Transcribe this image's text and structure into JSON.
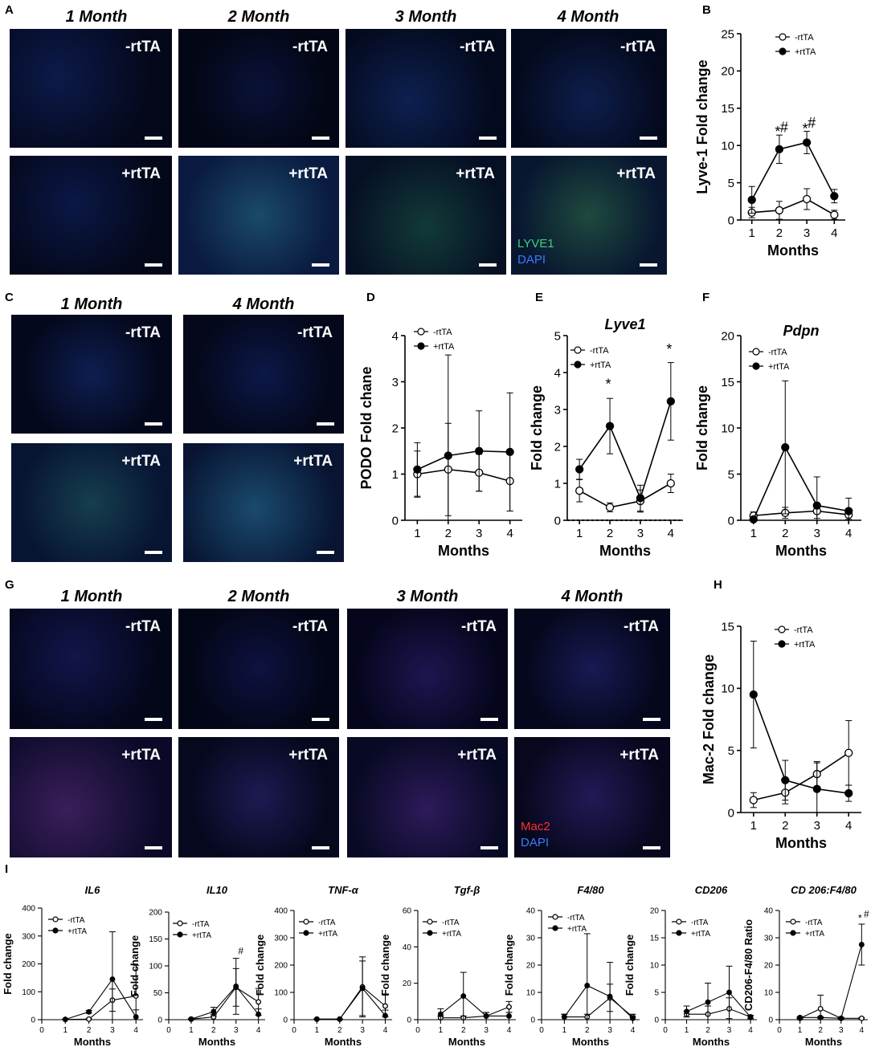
{
  "panel_letters": {
    "A": "A",
    "B": "B",
    "C": "C",
    "D": "D",
    "E": "E",
    "F": "F",
    "G": "G",
    "H": "H",
    "I": "I"
  },
  "panelA": {
    "columns": [
      "1 Month",
      "2 Month",
      "3 Month",
      "4 Month"
    ],
    "row_labels": [
      "-rtTA",
      "+rtTA"
    ],
    "stain_labels": [
      "LYVE1",
      "DAPI"
    ],
    "stain_colors": [
      "#2ecc71",
      "#2f6bff"
    ]
  },
  "panelC": {
    "columns": [
      "1 Month",
      "4 Month"
    ],
    "row_labels": [
      "-rtTA",
      "+rtTA"
    ]
  },
  "panelG": {
    "columns": [
      "1 Month",
      "2 Month",
      "3 Month",
      "4 Month"
    ],
    "row_labels": [
      "-rtTA",
      "+rtTA"
    ],
    "stain_labels": [
      "Mac2",
      "DAPI"
    ],
    "stain_colors": [
      "#ff2a2a",
      "#2f6bff"
    ]
  },
  "chart_data": [
    {
      "id": "B",
      "type": "line",
      "title": "",
      "xlabel": "Months",
      "ylabel": "Lyve-1 Fold change",
      "x": [
        1,
        2,
        3,
        4
      ],
      "ylim": [
        0,
        25
      ],
      "yticks": [
        0,
        5,
        10,
        15,
        20,
        25
      ],
      "series": [
        {
          "name": "-rtTA",
          "values": [
            1.0,
            1.3,
            2.8,
            0.7
          ],
          "err": [
            0.7,
            1.2,
            1.4,
            0.6
          ],
          "filled": false
        },
        {
          "name": "+rtTA",
          "values": [
            2.7,
            9.5,
            10.4,
            3.2
          ],
          "err": [
            1.8,
            1.9,
            1.5,
            0.9
          ],
          "filled": true
        }
      ],
      "annotations": [
        {
          "x": 2,
          "y": 11.2,
          "text": "*"
        },
        {
          "x": 2,
          "y": 11.8,
          "text": "#"
        },
        {
          "x": 3,
          "y": 11.6,
          "text": "*"
        },
        {
          "x": 3,
          "y": 12.4,
          "text": "#"
        }
      ]
    },
    {
      "id": "D",
      "type": "line",
      "title": "",
      "xlabel": "Months",
      "ylabel": "PODO Fold chane",
      "x": [
        1,
        2,
        3,
        4
      ],
      "ylim": [
        0,
        4
      ],
      "yticks": [
        0,
        1,
        2,
        3,
        4
      ],
      "series": [
        {
          "name": "-rtTA",
          "values": [
            1.0,
            1.1,
            1.03,
            0.85
          ],
          "err": [
            0.5,
            1.0,
            0.4,
            0.65
          ],
          "filled": false
        },
        {
          "name": "+rtTA",
          "values": [
            1.1,
            1.4,
            1.5,
            1.48
          ],
          "err": [
            0.58,
            2.18,
            0.87,
            1.28
          ],
          "filled": true
        }
      ],
      "annotations": []
    },
    {
      "id": "E",
      "type": "line",
      "title": "Lyve1",
      "xlabel": "Months",
      "ylabel": "Fold change",
      "x": [
        1,
        2,
        3,
        4
      ],
      "ylim": [
        0,
        5
      ],
      "yticks": [
        0,
        1,
        2,
        3,
        4,
        5
      ],
      "series": [
        {
          "name": "-rtTA",
          "values": [
            0.8,
            0.35,
            0.52,
            1.0
          ],
          "err": [
            0.3,
            0.12,
            0.3,
            0.25
          ],
          "filled": false
        },
        {
          "name": "+rtTA",
          "values": [
            1.38,
            2.55,
            0.6,
            3.22
          ],
          "err": [
            0.27,
            0.75,
            0.35,
            1.05
          ],
          "filled": true
        }
      ],
      "annotations": [
        {
          "x": 2,
          "y": 3.55,
          "text": "*"
        },
        {
          "x": 4,
          "y": 4.5,
          "text": "*"
        }
      ]
    },
    {
      "id": "F",
      "type": "line",
      "title": "Pdpn",
      "xlabel": "Months",
      "ylabel": "Fold change",
      "x": [
        1,
        2,
        3,
        4
      ],
      "ylim": [
        0,
        20
      ],
      "yticks": [
        0,
        5,
        10,
        15,
        20
      ],
      "series": [
        {
          "name": "-rtTA",
          "values": [
            0.5,
            0.8,
            1.0,
            0.6
          ],
          "err": [
            0.4,
            0.6,
            0.8,
            0.5
          ],
          "filled": false
        },
        {
          "name": "+rtTA",
          "values": [
            0.1,
            7.9,
            1.6,
            1.0
          ],
          "err": [
            0.2,
            7.2,
            3.1,
            1.4
          ],
          "filled": true
        }
      ],
      "annotations": []
    },
    {
      "id": "H",
      "type": "line",
      "title": "",
      "xlabel": "Months",
      "ylabel": "Mac-2 Fold change",
      "x": [
        1,
        2,
        3,
        4
      ],
      "ylim": [
        0,
        15
      ],
      "yticks": [
        0,
        5,
        10,
        15
      ],
      "series": [
        {
          "name": "-rtTA",
          "values": [
            1.0,
            1.6,
            3.1,
            4.8
          ],
          "err": [
            0.6,
            0.9,
            1.0,
            2.6
          ],
          "filled": false
        },
        {
          "name": "+rtTA",
          "values": [
            9.5,
            2.6,
            1.9,
            1.55
          ],
          "err": [
            4.3,
            1.6,
            2.1,
            0.65
          ],
          "filled": true
        }
      ],
      "annotations": []
    },
    {
      "id": "I1",
      "type": "line",
      "title": "IL6",
      "xlabel": "Months",
      "ylabel": "Fold change",
      "x": [
        1,
        2,
        3,
        4
      ],
      "xticks": [
        0,
        1,
        2,
        3,
        4
      ],
      "ylim": [
        0,
        400
      ],
      "yticks": [
        0,
        100,
        200,
        300,
        400
      ],
      "series": [
        {
          "name": "-rtTA",
          "values": [
            1,
            2,
            70,
            85
          ],
          "err": [
            1,
            2,
            40,
            110
          ],
          "filled": false
        },
        {
          "name": "+rtTA",
          "values": [
            1,
            28,
            145,
            10
          ],
          "err": [
            1,
            5,
            170,
            25
          ],
          "filled": true
        }
      ],
      "annotations": []
    },
    {
      "id": "I2",
      "type": "line",
      "title": "IL10",
      "xlabel": "Months",
      "ylabel": "Fold change",
      "x": [
        1,
        2,
        3,
        4
      ],
      "xticks": [
        0,
        1,
        2,
        3,
        4
      ],
      "ylim": [
        0,
        200
      ],
      "yticks": [
        0,
        50,
        100,
        150,
        200
      ],
      "series": [
        {
          "name": "-rtTA",
          "values": [
            1,
            5,
            60,
            33
          ],
          "err": [
            1,
            5,
            35,
            25
          ],
          "filled": false
        },
        {
          "name": "+rtTA",
          "values": [
            1,
            15,
            62,
            10
          ],
          "err": [
            1,
            8,
            52,
            10
          ],
          "filled": true
        }
      ],
      "annotations": [
        {
          "x": 3,
          "y": 122,
          "text": "#"
        }
      ]
    },
    {
      "id": "I3",
      "type": "line",
      "title": "TNF-α",
      "xlabel": "Months",
      "ylabel": "Fold change",
      "x": [
        1,
        2,
        3,
        4
      ],
      "xticks": [
        0,
        1,
        2,
        3,
        4
      ],
      "ylim": [
        0,
        400
      ],
      "yticks": [
        0,
        100,
        200,
        300,
        400
      ],
      "series": [
        {
          "name": "-rtTA",
          "values": [
            2,
            2,
            120,
            50
          ],
          "err": [
            1,
            1,
            110,
            40
          ],
          "filled": false
        },
        {
          "name": "+rtTA",
          "values": [
            2,
            2,
            115,
            15
          ],
          "err": [
            1,
            1,
            100,
            20
          ],
          "filled": true
        }
      ],
      "annotations": []
    },
    {
      "id": "I4",
      "type": "line",
      "title": "Tgf-β",
      "xlabel": "Months",
      "ylabel": "Fold change",
      "x": [
        1,
        2,
        3,
        4
      ],
      "xticks": [
        0,
        1,
        2,
        3,
        4
      ],
      "ylim": [
        0,
        60
      ],
      "yticks": [
        0,
        20,
        40,
        60
      ],
      "series": [
        {
          "name": "-rtTA",
          "values": [
            1,
            1,
            2,
            7
          ],
          "err": [
            1,
            1,
            2,
            3
          ],
          "filled": false
        },
        {
          "name": "+rtTA",
          "values": [
            3,
            13,
            2,
            2
          ],
          "err": [
            3,
            13,
            2,
            2
          ],
          "filled": true
        }
      ],
      "annotations": []
    },
    {
      "id": "I5",
      "type": "line",
      "title": "F4/80",
      "xlabel": "Months",
      "ylabel": "Fold change",
      "x": [
        1,
        2,
        3,
        4
      ],
      "xticks": [
        0,
        1,
        2,
        3,
        4
      ],
      "ylim": [
        0,
        40
      ],
      "yticks": [
        0,
        10,
        20,
        30,
        40
      ],
      "series": [
        {
          "name": "-rtTA",
          "values": [
            1,
            1,
            8,
            1
          ],
          "err": [
            1,
            1,
            5,
            1
          ],
          "filled": false
        },
        {
          "name": "+rtTA",
          "values": [
            1,
            12.5,
            8.5,
            0.5
          ],
          "err": [
            1,
            19,
            12.5,
            0.5
          ],
          "filled": true
        }
      ],
      "annotations": []
    },
    {
      "id": "I6",
      "type": "line",
      "title": "CD206",
      "xlabel": "Months",
      "ylabel": "Fold change",
      "x": [
        1,
        2,
        3,
        4
      ],
      "xticks": [
        0,
        1,
        2,
        3,
        4
      ],
      "ylim": [
        0,
        20
      ],
      "yticks": [
        0,
        5,
        10,
        15,
        20
      ],
      "series": [
        {
          "name": "-rtTA",
          "values": [
            1,
            1,
            2,
            0.5
          ],
          "err": [
            0.5,
            1.5,
            2,
            0.3
          ],
          "filled": false
        },
        {
          "name": "+rtTA",
          "values": [
            1.5,
            3.2,
            5,
            0.5
          ],
          "err": [
            1,
            3.5,
            4.8,
            0.3
          ],
          "filled": true
        }
      ],
      "annotations": []
    },
    {
      "id": "I7",
      "type": "line",
      "title": "CD 206:F4/80",
      "xlabel": "Months",
      "ylabel": "CD206-F4/80 Ratio",
      "x": [
        1,
        2,
        3,
        4
      ],
      "xticks": [
        0,
        1,
        2,
        3,
        4
      ],
      "ylim": [
        0,
        40
      ],
      "yticks": [
        0,
        10,
        20,
        30,
        40
      ],
      "series": [
        {
          "name": "-rtTA",
          "values": [
            0.5,
            4,
            0.5,
            0.5
          ],
          "err": [
            0.3,
            5,
            0.3,
            0.3
          ],
          "filled": false
        },
        {
          "name": "+rtTA",
          "values": [
            0.8,
            0.8,
            0.5,
            27.5
          ],
          "err": [
            0.3,
            0.3,
            0.3,
            7.5
          ],
          "filled": true
        }
      ],
      "annotations": [
        {
          "x": 4,
          "y": 36,
          "text": "*"
        },
        {
          "x": 4,
          "y": 37.5,
          "text": "#"
        }
      ]
    }
  ]
}
